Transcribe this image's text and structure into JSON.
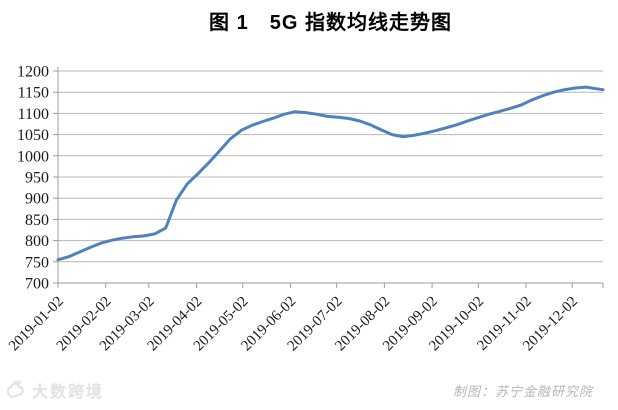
{
  "header": {
    "title": "图 1　5G 指数均线走势图"
  },
  "footer": {
    "credit": "制图：苏宁金融研究院",
    "watermark": "大数跨境"
  },
  "colors": {
    "line": "#4f81bd",
    "grid": "#b8b8b8",
    "axis": "#9c9c9c",
    "tick_text": "#1a1a1a",
    "credit_text": "#b5b5b5",
    "watermark_text": "#e2e2e2",
    "background": "#ffffff"
  },
  "chart_data": {
    "type": "line",
    "title": "图 1　5G 指数均线走势图",
    "xlabel": "",
    "ylabel": "",
    "ylim": [
      700,
      1200
    ],
    "ytick_step": 50,
    "grid": true,
    "legend": false,
    "x_tick_labels": [
      "2019-01-02",
      "2019-02-02",
      "2019-03-02",
      "2019-04-02",
      "2019-05-02",
      "2019-06-02",
      "2019-07-02",
      "2019-08-02",
      "2019-09-02",
      "2019-10-02",
      "2019-11-02",
      "2019-12-02"
    ],
    "x": [
      "2019-01-02",
      "2019-01-09",
      "2019-01-16",
      "2019-01-23",
      "2019-01-30",
      "2019-02-06",
      "2019-02-13",
      "2019-02-20",
      "2019-02-27",
      "2019-03-06",
      "2019-03-13",
      "2019-03-20",
      "2019-03-27",
      "2019-04-03",
      "2019-04-10",
      "2019-04-17",
      "2019-04-24",
      "2019-05-01",
      "2019-05-08",
      "2019-05-15",
      "2019-05-22",
      "2019-05-29",
      "2019-06-05",
      "2019-06-12",
      "2019-06-19",
      "2019-06-26",
      "2019-07-03",
      "2019-07-10",
      "2019-07-17",
      "2019-07-24",
      "2019-07-31",
      "2019-08-07",
      "2019-08-14",
      "2019-08-21",
      "2019-08-28",
      "2019-09-04",
      "2019-09-11",
      "2019-09-18",
      "2019-09-25",
      "2019-10-02",
      "2019-10-09",
      "2019-10-16",
      "2019-10-23",
      "2019-10-30",
      "2019-11-06",
      "2019-11-13",
      "2019-11-20",
      "2019-11-27",
      "2019-12-04",
      "2019-12-11",
      "2019-12-18",
      "2019-12-22"
    ],
    "values": [
      755,
      762,
      773,
      784,
      794,
      801,
      806,
      809,
      811,
      816,
      830,
      896,
      934,
      958,
      984,
      1012,
      1040,
      1060,
      1072,
      1081,
      1089,
      1098,
      1104,
      1102,
      1098,
      1093,
      1091,
      1088,
      1082,
      1073,
      1061,
      1050,
      1045,
      1048,
      1053,
      1059,
      1066,
      1073,
      1082,
      1090,
      1098,
      1105,
      1112,
      1120,
      1132,
      1142,
      1150,
      1156,
      1160,
      1162,
      1158,
      1156
    ]
  }
}
